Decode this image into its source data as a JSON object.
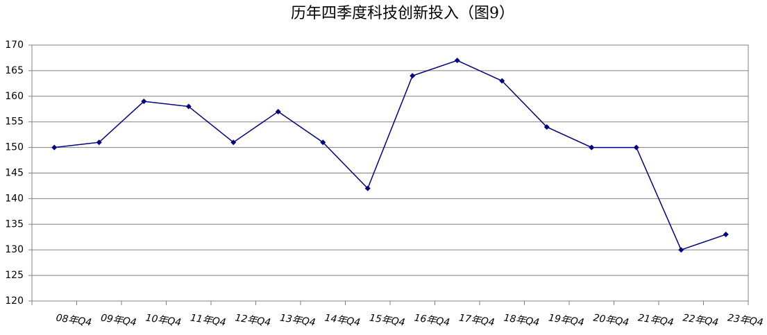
{
  "chart_data": {
    "type": "line",
    "title": "历年四季度科技创新投入（图9）",
    "categories": [
      "08年Q4",
      "09年Q4",
      "10年Q4",
      "11年Q4",
      "12年Q4",
      "13年Q4",
      "14年Q4",
      "15年Q4",
      "16年Q4",
      "17年Q4",
      "18年Q4",
      "19年Q4",
      "20年Q4",
      "21年Q4",
      "22年Q4",
      "23年Q4"
    ],
    "values": [
      150,
      151,
      159,
      158,
      151,
      157,
      151,
      142,
      164,
      167,
      163,
      154,
      150,
      150,
      130,
      133
    ],
    "color": "#000080",
    "ylim": [
      120,
      170
    ],
    "yticks": [
      120,
      125,
      130,
      135,
      140,
      145,
      150,
      155,
      160,
      165,
      170
    ],
    "grid": true
  }
}
